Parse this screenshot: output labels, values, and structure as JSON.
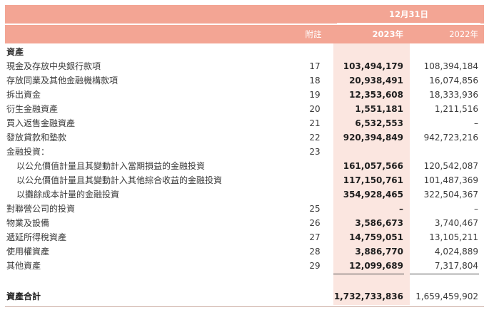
{
  "header": {
    "date": "12月31日",
    "note_col": "附註",
    "col_2023": "2023年",
    "col_2022": "2022年"
  },
  "section_title": "資產",
  "rows": [
    {
      "label": "現金及存放中央銀行款項",
      "note": "17",
      "v2023": "103,494,179",
      "v2022": "108,394,184"
    },
    {
      "label": "存放同業及其他金融機構款項",
      "note": "18",
      "v2023": "20,938,491",
      "v2022": "16,074,856"
    },
    {
      "label": "拆出資金",
      "note": "19",
      "v2023": "12,353,608",
      "v2022": "18,333,936"
    },
    {
      "label": "衍生金融資產",
      "note": "20",
      "v2023": "1,551,181",
      "v2022": "1,211,516"
    },
    {
      "label": "買入返售金融資產",
      "note": "21",
      "v2023": "6,532,553",
      "v2022": "–"
    },
    {
      "label": "發放貸款和墊款",
      "note": "22",
      "v2023": "920,394,849",
      "v2022": "942,723,216"
    },
    {
      "label": "金融投資：",
      "note": "23",
      "v2023": "",
      "v2022": ""
    },
    {
      "label": "以公允價值計量且其變動計入當期損益的金融投資",
      "note": "",
      "v2023": "161,057,566",
      "v2022": "120,542,087"
    },
    {
      "label": "以公允價值計量且其變動計入其他綜合收益的金融投資",
      "note": "",
      "v2023": "117,150,761",
      "v2022": "101,487,369"
    },
    {
      "label": "以攤餘成本計量的金融投資",
      "note": "",
      "v2023": "354,928,465",
      "v2022": "322,504,367"
    },
    {
      "label": "對聯營公司的投資",
      "note": "25",
      "v2023": "–",
      "v2022": "–"
    },
    {
      "label": "物業及設備",
      "note": "26",
      "v2023": "3,586,673",
      "v2022": "3,740,467"
    },
    {
      "label": "遞延所得稅資產",
      "note": "27",
      "v2023": "14,759,051",
      "v2022": "13,105,211"
    },
    {
      "label": "使用權資產",
      "note": "28",
      "v2023": "3,886,770",
      "v2022": "4,024,889"
    },
    {
      "label": "其他資產",
      "note": "29",
      "v2023": "12,099,689",
      "v2022": "7,317,804"
    }
  ],
  "total": {
    "label": "資產合計",
    "v2023": "1,732,733,836",
    "v2022": "1,659,459,902"
  },
  "colors": {
    "header_bg": "#f3a594",
    "highlight_col": "#fbe6e0",
    "text": "#3a3a3a"
  }
}
